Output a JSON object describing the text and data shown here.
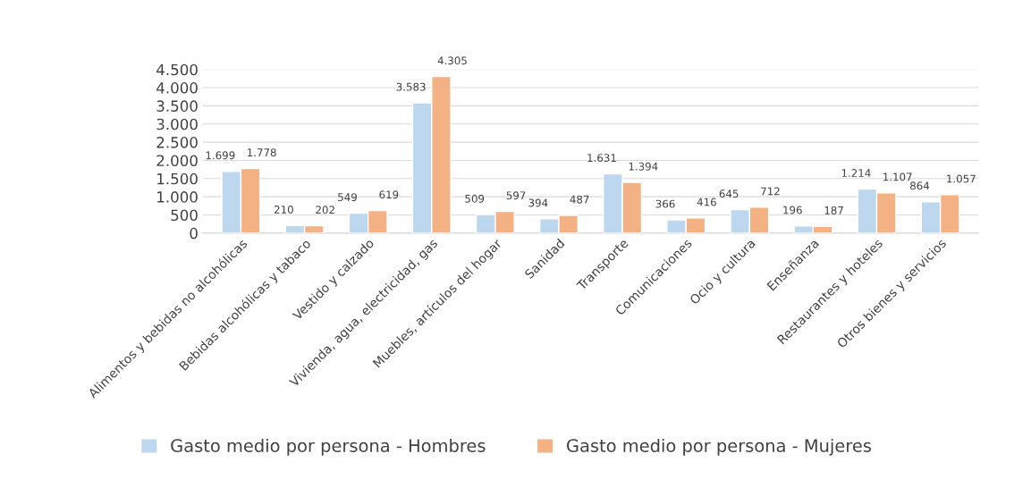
{
  "chart_data": {
    "type": "bar",
    "categories": [
      "Alimentos y bebidas no alcohólicas",
      "Bebidas alcohólicas y tabaco",
      "Vestido y calzado",
      "Vivienda, agua, electricidad, gas",
      "Muebles, artículos del hogar",
      "Sanidad",
      "Transporte",
      "Comunicaciones",
      "Ocio y cultura",
      "Enseñanza",
      "Restaurantes y hoteles",
      "Otros bienes y servicios"
    ],
    "series": [
      {
        "name": "Gasto medio por persona - Hombres",
        "color": "#bdd7ee",
        "values": [
          1699,
          210,
          549,
          3583,
          509,
          394,
          1631,
          366,
          645,
          196,
          1214,
          864
        ],
        "value_labels": [
          "1.699",
          "210",
          "549",
          "3.583",
          "509",
          "394",
          "1.631",
          "366",
          "645",
          "196",
          "1.214",
          "864"
        ]
      },
      {
        "name": "Gasto medio por persona - Mujeres",
        "color": "#f4b183",
        "values": [
          1778,
          202,
          619,
          4305,
          597,
          487,
          1394,
          416,
          712,
          187,
          1107,
          1057
        ],
        "value_labels": [
          "1.778",
          "202",
          "619",
          "4.305",
          "597",
          "487",
          "1.394",
          "416",
          "712",
          "187",
          "1.107",
          "1.057"
        ]
      }
    ],
    "ylim": [
      0,
      4500
    ],
    "yticks": [
      0,
      {
        "value": 500,
        "label": "500"
      },
      {
        "value": 1000,
        "label": "1.000"
      },
      {
        "value": 1500,
        "label": "1.500"
      },
      {
        "value": 2000,
        "label": "2.000"
      },
      {
        "value": 2500,
        "label": "2.500"
      },
      {
        "value": 3000,
        "label": "3.000"
      },
      {
        "value": 3500,
        "label": "3.500"
      },
      {
        "value": 4000,
        "label": "4.000"
      },
      {
        "value": 4500,
        "label": "4.500"
      }
    ],
    "grid": "y",
    "legend": "bottom"
  }
}
